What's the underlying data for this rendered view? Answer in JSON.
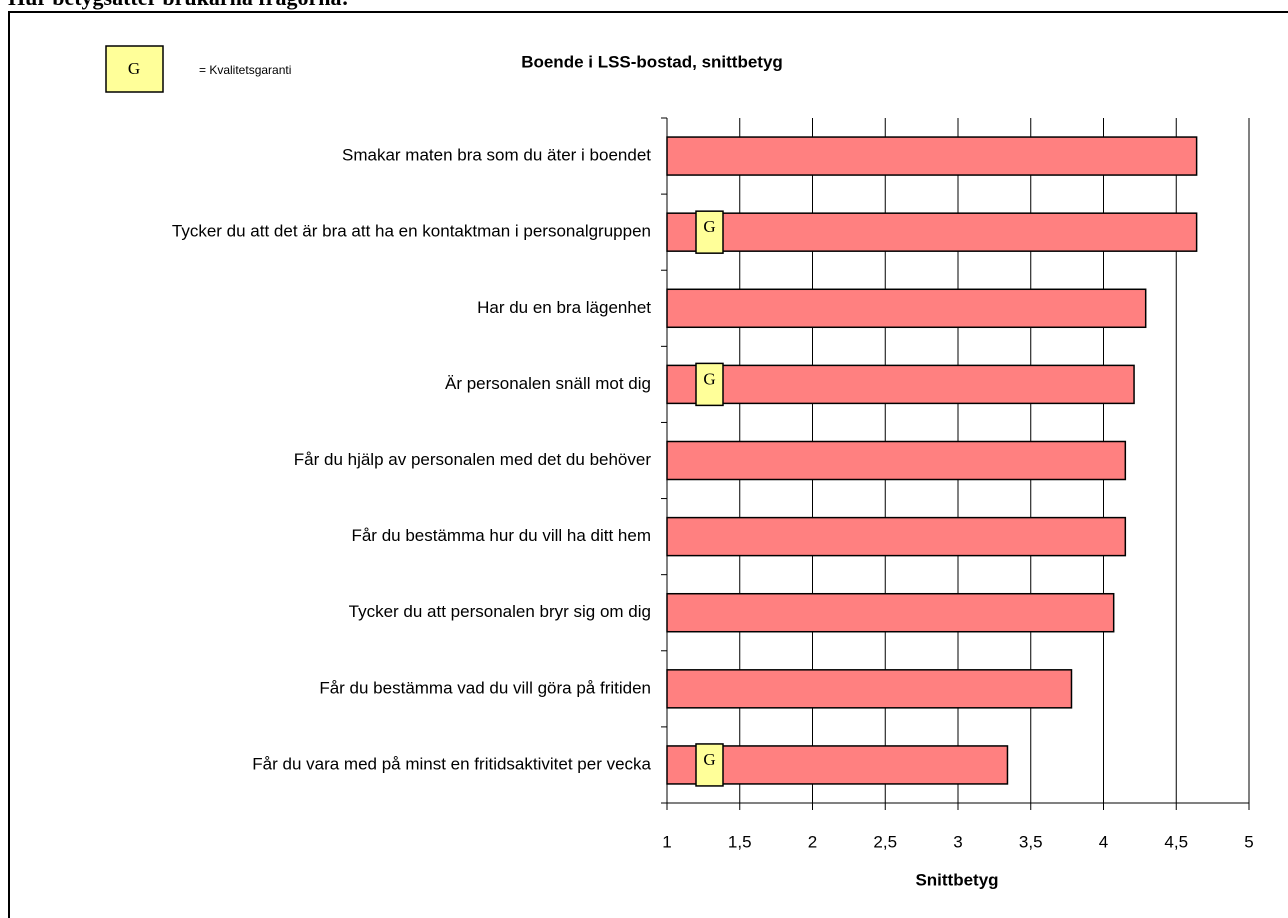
{
  "chart_data": {
    "type": "barh",
    "heading": "Hur betygsätter brukarna frågorna:",
    "title": "Boende i LSS-bostad, snittbetyg",
    "xlabel": "Snittbetyg",
    "categories": [
      "Smakar maten bra som du äter i boendet",
      "Tycker du att det är bra att ha en kontaktman i personalgruppen",
      "Har du en bra lägenhet",
      "Är personalen snäll mot dig",
      "Får du hjälp av personalen med det du behöver",
      "Får du bestämma hur du vill ha ditt hem",
      "Tycker du att personalen bryr sig om dig",
      "Får du bestämma vad du vill göra på fritiden",
      "Får du vara med på minst en fritidsaktivitet per vecka"
    ],
    "values": [
      4.64,
      4.64,
      4.29,
      4.21,
      4.15,
      4.15,
      4.07,
      3.78,
      3.34
    ],
    "color": "#ff8080",
    "guarantee": [
      false,
      true,
      false,
      true,
      false,
      false,
      false,
      false,
      true
    ],
    "guarantee_symbol": "G",
    "guarantee_legend": "= Kvalitetsgaranti",
    "xlim": [
      1,
      5
    ],
    "xticks": [
      1,
      {
        "value": 1.5,
        "label": "1,5"
      },
      2,
      {
        "value": 2.5,
        "label": "2,5"
      },
      3,
      {
        "value": 3.5,
        "label": "3,5"
      },
      4,
      {
        "value": 4.5,
        "label": "4,5"
      },
      5
    ],
    "grid": true
  }
}
